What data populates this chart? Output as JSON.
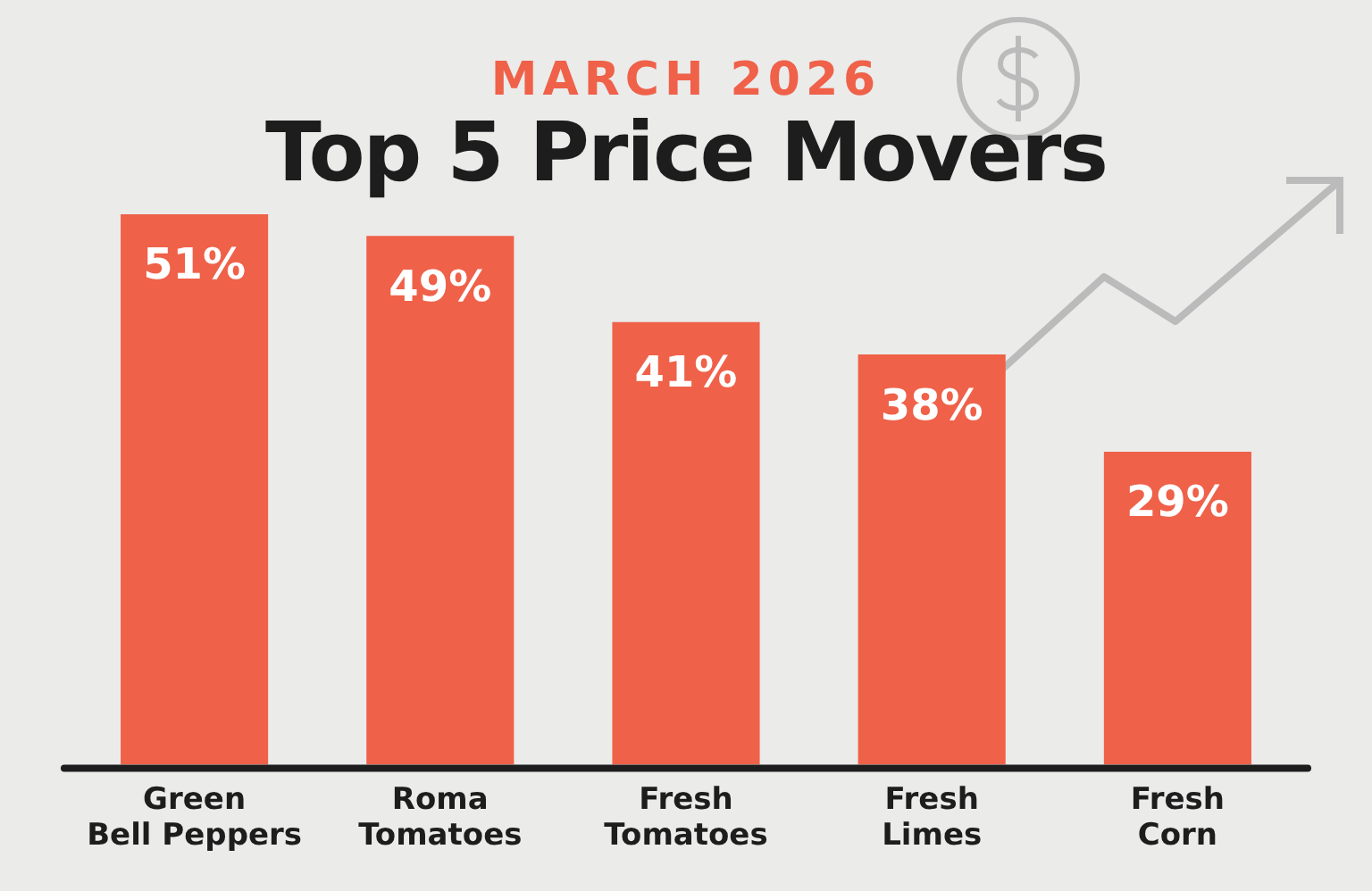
{
  "chart_data": {
    "type": "bar",
    "subtitle": "MARCH 2026",
    "title": "Top 5 Price Movers",
    "categories": [
      "Green Bell Peppers",
      "Roma Tomatoes",
      "Fresh Tomatoes",
      "Fresh Limes",
      "Fresh Corn"
    ],
    "values": [
      51,
      49,
      41,
      38,
      29
    ],
    "value_labels": [
      "51%",
      "49%",
      "41%",
      "38%",
      "29%"
    ],
    "color": "#ef6149",
    "grid": false,
    "legend": false
  }
}
